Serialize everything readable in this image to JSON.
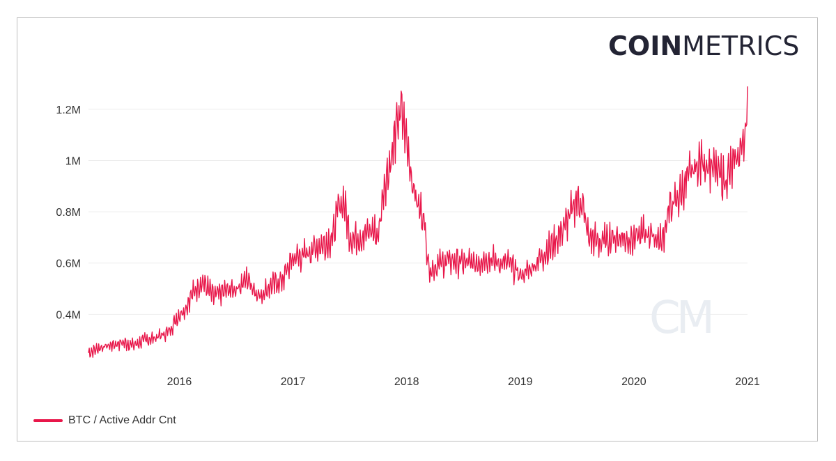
{
  "logo": {
    "bold": "COIN",
    "light": "METRICS"
  },
  "watermark": "CM",
  "colors": {
    "series": "#e8174a",
    "grid": "#ededed",
    "text": "#333333",
    "logo": "#232434"
  },
  "legend": {
    "label": "BTC / Active Addr Cnt"
  },
  "chart_data": {
    "type": "line",
    "title": "",
    "xlabel": "",
    "ylabel": "",
    "xlim": [
      2015.2,
      2021.0
    ],
    "ylim": [
      0.2,
      1.3
    ],
    "unit": "M",
    "x_ticks": [
      {
        "value": 2016,
        "label": "2016"
      },
      {
        "value": 2017,
        "label": "2017"
      },
      {
        "value": 2018,
        "label": "2018"
      },
      {
        "value": 2019,
        "label": "2019"
      },
      {
        "value": 2020,
        "label": "2020"
      },
      {
        "value": 2021,
        "label": "2021"
      }
    ],
    "y_ticks": [
      {
        "value": 0.4,
        "label": "0.4M"
      },
      {
        "value": 0.6,
        "label": "0.6M"
      },
      {
        "value": 0.8,
        "label": "0.8M"
      },
      {
        "value": 1.0,
        "label": "1M"
      },
      {
        "value": 1.2,
        "label": "1.2M"
      }
    ],
    "grid": true,
    "legend_position": "bottom-left",
    "series": [
      {
        "name": "BTC / Active Addr Cnt",
        "x": [
          2015.2,
          2015.3,
          2015.4,
          2015.5,
          2015.6,
          2015.7,
          2015.8,
          2015.9,
          2016.0,
          2016.05,
          2016.1,
          2016.2,
          2016.3,
          2016.4,
          2016.5,
          2016.6,
          2016.7,
          2016.8,
          2016.9,
          2017.0,
          2017.1,
          2017.2,
          2017.3,
          2017.35,
          2017.4,
          2017.45,
          2017.5,
          2017.6,
          2017.7,
          2017.75,
          2017.8,
          2017.85,
          2017.9,
          2017.95,
          2018.0,
          2018.05,
          2018.1,
          2018.15,
          2018.2,
          2018.3,
          2018.4,
          2018.5,
          2018.6,
          2018.7,
          2018.8,
          2018.9,
          2019.0,
          2019.1,
          2019.2,
          2019.3,
          2019.4,
          2019.45,
          2019.5,
          2019.55,
          2019.6,
          2019.7,
          2019.8,
          2019.9,
          2020.0,
          2020.1,
          2020.2,
          2020.25,
          2020.3,
          2020.4,
          2020.5,
          2020.6,
          2020.7,
          2020.8,
          2020.9,
          2020.95,
          2021.0
        ],
        "values": [
          0.25,
          0.27,
          0.28,
          0.29,
          0.28,
          0.3,
          0.31,
          0.33,
          0.4,
          0.42,
          0.47,
          0.53,
          0.47,
          0.49,
          0.5,
          0.54,
          0.47,
          0.51,
          0.53,
          0.62,
          0.63,
          0.66,
          0.68,
          0.7,
          0.82,
          0.84,
          0.7,
          0.7,
          0.73,
          0.7,
          0.9,
          0.98,
          1.1,
          1.2,
          1.08,
          0.92,
          0.82,
          0.78,
          0.57,
          0.6,
          0.61,
          0.6,
          0.6,
          0.62,
          0.6,
          0.6,
          0.55,
          0.58,
          0.63,
          0.68,
          0.75,
          0.8,
          0.85,
          0.82,
          0.7,
          0.68,
          0.7,
          0.7,
          0.69,
          0.72,
          0.7,
          0.68,
          0.8,
          0.86,
          0.95,
          1.0,
          0.97,
          0.92,
          1.0,
          1.05,
          1.18
        ]
      }
    ]
  }
}
